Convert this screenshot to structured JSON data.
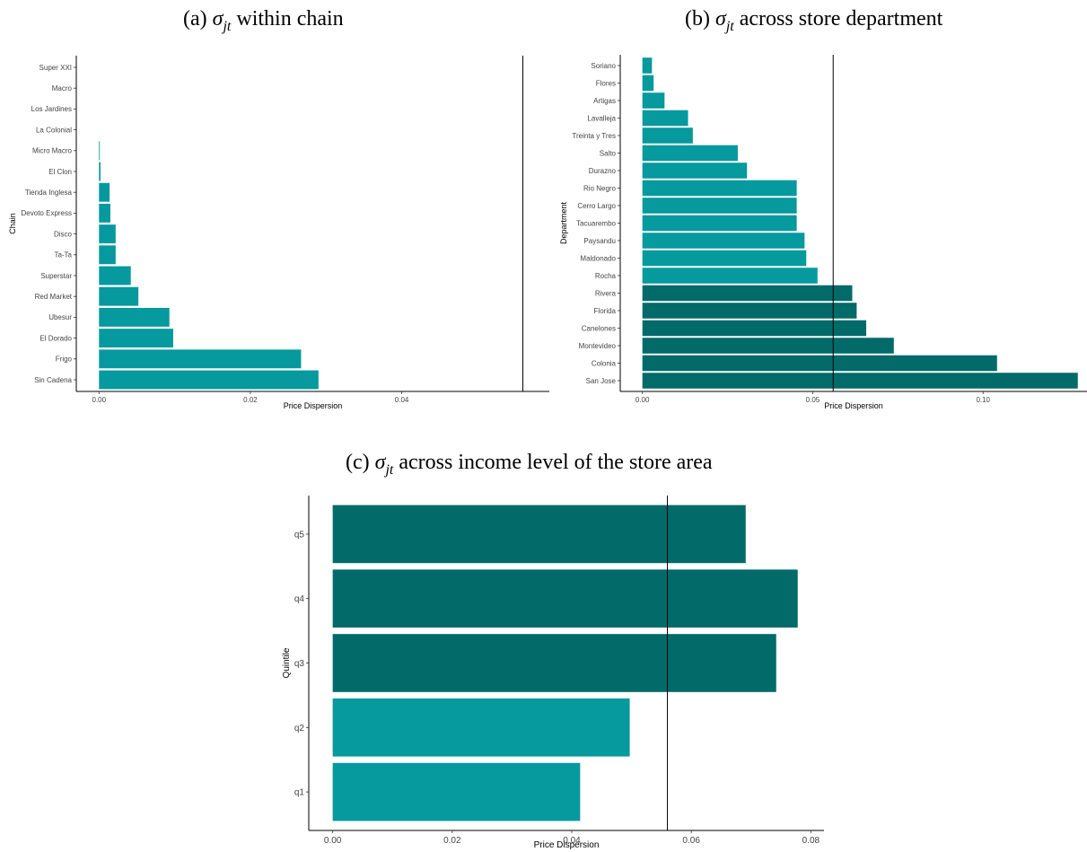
{
  "colors": {
    "light": "#06999d",
    "dark": "#036a6a",
    "axis": "#000000"
  },
  "chart_data": [
    {
      "id": "a",
      "type": "bar",
      "orientation": "horizontal",
      "title_prefix": "(a) ",
      "title_symbol": "σ",
      "title_subscript": "jt",
      "title_suffix": " within chain",
      "xlabel": "Price Dispersion",
      "ylabel": "Chain",
      "xlim": [
        -0.003,
        0.0595
      ],
      "xticks": [
        "0.00",
        "0.02",
        "0.04"
      ],
      "xtick_values": [
        0,
        0.02,
        0.04
      ],
      "reference_line": 0.056,
      "grid": false,
      "categories": [
        "Super XXI",
        "Macro",
        "Los Jardines",
        "La Colonial",
        "Micro Macro",
        "El Clon",
        "Tienda Inglesa",
        "Devoto Express",
        "Disco",
        "Ta-Ta",
        "Superstar",
        "Red Market",
        "Ubesur",
        "El Dorado",
        "Frigo",
        "Sin Cadena"
      ],
      "values": [
        0.0,
        0.0,
        0.0,
        0.0,
        0.0001,
        0.0002,
        0.0014,
        0.0015,
        0.0022,
        0.0022,
        0.0042,
        0.0052,
        0.0093,
        0.0098,
        0.0267,
        0.029
      ],
      "shade": [
        "light",
        "light",
        "light",
        "light",
        "light",
        "light",
        "light",
        "light",
        "light",
        "light",
        "light",
        "light",
        "light",
        "light",
        "light",
        "light"
      ]
    },
    {
      "id": "b",
      "type": "bar",
      "orientation": "horizontal",
      "title_prefix": "(b) ",
      "title_symbol": "σ",
      "title_subscript": "jt",
      "title_suffix": " across store department",
      "xlabel": "Price Dispersion",
      "ylabel": "Department",
      "xlim": [
        -0.0065,
        0.1305
      ],
      "xticks": [
        "0.00",
        "0.05",
        "0.10"
      ],
      "xtick_values": [
        0,
        0.05,
        0.1
      ],
      "reference_line": 0.056,
      "grid": false,
      "categories": [
        "Soriano",
        "Flores",
        "Artigas",
        "Lavalleja",
        "Treinta y Tres",
        "Salto",
        "Durazno",
        "Rio Negro",
        "Cerro Largo",
        "Tacuarembo",
        "Paysandu",
        "Maldonado",
        "Rocha",
        "Rivera",
        "Florida",
        "Canelones",
        "Montevideo",
        "Colonia",
        "San Jose"
      ],
      "values": [
        0.0028,
        0.0033,
        0.0065,
        0.0134,
        0.0148,
        0.028,
        0.0307,
        0.0453,
        0.0453,
        0.0453,
        0.0476,
        0.0481,
        0.0514,
        0.0616,
        0.0629,
        0.0657,
        0.0738,
        0.1041,
        0.1278
      ],
      "shade": [
        "light",
        "light",
        "light",
        "light",
        "light",
        "light",
        "light",
        "light",
        "light",
        "light",
        "light",
        "light",
        "light",
        "dark",
        "dark",
        "dark",
        "dark",
        "dark",
        "dark"
      ]
    },
    {
      "id": "c",
      "type": "bar",
      "orientation": "horizontal",
      "title_prefix": "(c) ",
      "title_symbol": "σ",
      "title_subscript": "jt",
      "title_suffix": " across income level of the store area",
      "xlabel": "Price Dispersion",
      "ylabel": "Quintile",
      "xlim": [
        -0.004,
        0.0822
      ],
      "xticks": [
        "0.00",
        "0.02",
        "0.04",
        "0.06",
        "0.08"
      ],
      "xtick_values": [
        0,
        0.02,
        0.04,
        0.06,
        0.08
      ],
      "reference_line": 0.056,
      "grid": false,
      "categories": [
        "q5",
        "q4",
        "q3",
        "q2",
        "q1"
      ],
      "values": [
        0.0691,
        0.0778,
        0.0742,
        0.0497,
        0.0414
      ],
      "shade": [
        "dark",
        "dark",
        "dark",
        "light",
        "light"
      ]
    }
  ]
}
